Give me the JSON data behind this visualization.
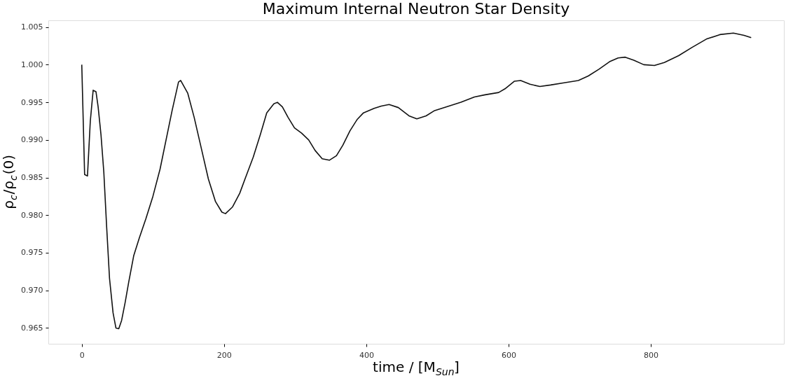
{
  "chart_data": {
    "type": "line",
    "title": "Maximum Internal Neutron Star Density",
    "xlabel": "time / [M$_{Sun}$]",
    "ylabel": "ρ$_{c}$/ρ$_{c}$(0)",
    "xlim": [
      -47,
      987
    ],
    "xticks": [
      0,
      200,
      400,
      600,
      800
    ],
    "ylim": [
      0.9629,
      1.0059
    ],
    "yticks": [
      0.965,
      {
        "value": 0.97,
        "label": "0.970"
      },
      0.975,
      {
        "value": 0.98,
        "label": "0.980"
      },
      0.985,
      {
        "value": 0.99,
        "label": "0.990"
      },
      0.995,
      {
        "value": 1.0,
        "label": "1.000"
      },
      1.005
    ],
    "grid": false,
    "marker": "none",
    "line_style": "solid",
    "series": [
      {
        "color": "#111111",
        "x": [
          0,
          4,
          8,
          12,
          16,
          20,
          23,
          27,
          31,
          35,
          39,
          44,
          48,
          52,
          56,
          61,
          66,
          73,
          81,
          90,
          100,
          110,
          120,
          127,
          136,
          139,
          149,
          158,
          168,
          178,
          188,
          197,
          202,
          212,
          222,
          231,
          241,
          251,
          260,
          270,
          275,
          282,
          290,
          299,
          309,
          319,
          328,
          338,
          348,
          358,
          367,
          377,
          387,
          396,
          411,
          421,
          432,
          445,
          460,
          471,
          484,
          496,
          513,
          533,
          552,
          567,
          586,
          595,
          608,
          617,
          630,
          644,
          659,
          678,
          698,
          712,
          727,
          742,
          754,
          764,
          776,
          790,
          805,
          819,
          839,
          858,
          878,
          897,
          916,
          931,
          941
        ],
        "values": [
          1.0,
          0.9854,
          0.9852,
          0.9925,
          0.9966,
          0.9964,
          0.9944,
          0.9907,
          0.9857,
          0.9784,
          0.9716,
          0.967,
          0.965,
          0.9649,
          0.966,
          0.9684,
          0.9711,
          0.9746,
          0.977,
          0.9795,
          0.9825,
          0.9861,
          0.9907,
          0.9939,
          0.9977,
          0.9979,
          0.9962,
          0.993,
          0.9889,
          0.9848,
          0.9818,
          0.9804,
          0.9802,
          0.9811,
          0.9829,
          0.9852,
          0.9877,
          0.9907,
          0.9936,
          0.9948,
          0.995,
          0.9944,
          0.993,
          0.9916,
          0.9909,
          0.99,
          0.9886,
          0.9875,
          0.9873,
          0.9879,
          0.9893,
          0.9912,
          0.9927,
          0.9936,
          0.9942,
          0.9945,
          0.9947,
          0.9943,
          0.9932,
          0.9928,
          0.9932,
          0.9939,
          0.9944,
          0.995,
          0.9957,
          0.996,
          0.9963,
          0.9968,
          0.9978,
          0.9979,
          0.9974,
          0.9971,
          0.9973,
          0.9976,
          0.9979,
          0.9985,
          0.9994,
          1.0004,
          1.0009,
          1.001,
          1.0006,
          1.0,
          0.9999,
          1.0003,
          1.0012,
          1.0023,
          1.0034,
          1.004,
          1.0042,
          1.0039,
          1.0036
        ]
      }
    ]
  }
}
